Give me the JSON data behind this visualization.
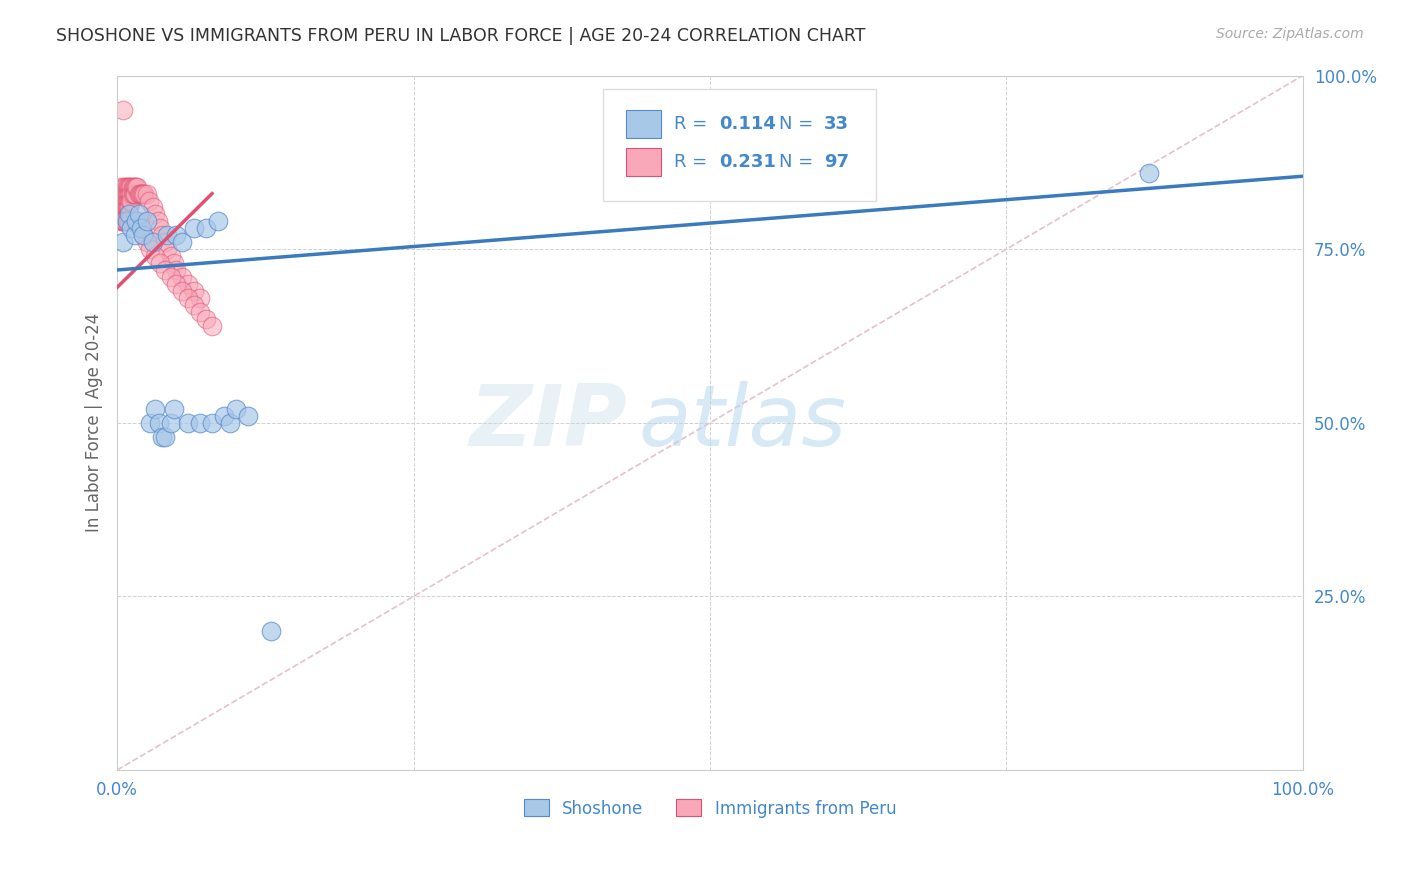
{
  "title": "SHOSHONE VS IMMIGRANTS FROM PERU IN LABOR FORCE | AGE 20-24 CORRELATION CHART",
  "source_text": "Source: ZipAtlas.com",
  "ylabel": "In Labor Force | Age 20-24",
  "xlim": [
    0,
    1
  ],
  "ylim": [
    0,
    1
  ],
  "xticks": [
    0.0,
    0.25,
    0.5,
    0.75,
    1.0
  ],
  "yticks": [
    0.0,
    0.25,
    0.5,
    0.75,
    1.0
  ],
  "xticklabels": [
    "0.0%",
    "",
    "",
    "",
    "100.0%"
  ],
  "yticklabels": [
    "",
    "25.0%",
    "50.0%",
    "75.0%",
    "100.0%"
  ],
  "shoshone_color": "#a8c8e8",
  "peru_color": "#f8a8b8",
  "shoshone_edge_color": "#5588cc",
  "peru_edge_color": "#e05070",
  "trend_blue_color": "#3a7abf",
  "trend_pink_color": "#e05070",
  "diag_line_color": "#e0b0c0",
  "legend_label_blue": "Shoshone",
  "legend_label_pink": "Immigrants from Peru",
  "axis_color": "#4488cc",
  "watermark_zip": "ZIP",
  "watermark_atlas": "atlas",
  "background_color": "#ffffff",
  "shoshone_x": [
    0.005,
    0.008,
    0.01,
    0.012,
    0.015,
    0.016,
    0.018,
    0.02,
    0.022,
    0.025,
    0.028,
    0.03,
    0.032,
    0.035,
    0.038,
    0.04,
    0.042,
    0.045,
    0.048,
    0.05,
    0.055,
    0.06,
    0.065,
    0.07,
    0.075,
    0.08,
    0.085,
    0.09,
    0.095,
    0.1,
    0.11,
    0.13,
    0.87
  ],
  "shoshone_y": [
    0.76,
    0.79,
    0.8,
    0.78,
    0.77,
    0.79,
    0.8,
    0.78,
    0.77,
    0.79,
    0.5,
    0.76,
    0.52,
    0.5,
    0.48,
    0.48,
    0.77,
    0.5,
    0.52,
    0.77,
    0.76,
    0.5,
    0.78,
    0.5,
    0.78,
    0.5,
    0.79,
    0.51,
    0.5,
    0.52,
    0.51,
    0.2,
    0.86
  ],
  "peru_x": [
    0.002,
    0.003,
    0.003,
    0.004,
    0.004,
    0.004,
    0.005,
    0.005,
    0.005,
    0.005,
    0.006,
    0.006,
    0.006,
    0.006,
    0.006,
    0.007,
    0.007,
    0.007,
    0.007,
    0.007,
    0.008,
    0.008,
    0.008,
    0.008,
    0.008,
    0.009,
    0.009,
    0.009,
    0.009,
    0.009,
    0.01,
    0.01,
    0.01,
    0.01,
    0.011,
    0.011,
    0.011,
    0.012,
    0.012,
    0.012,
    0.013,
    0.013,
    0.014,
    0.014,
    0.015,
    0.015,
    0.016,
    0.017,
    0.018,
    0.019,
    0.02,
    0.021,
    0.022,
    0.023,
    0.025,
    0.027,
    0.03,
    0.032,
    0.034,
    0.036,
    0.038,
    0.04,
    0.042,
    0.045,
    0.048,
    0.05,
    0.055,
    0.06,
    0.065,
    0.07,
    0.003,
    0.004,
    0.005,
    0.006,
    0.007,
    0.008,
    0.009,
    0.01,
    0.012,
    0.014,
    0.016,
    0.018,
    0.02,
    0.022,
    0.025,
    0.028,
    0.032,
    0.036,
    0.04,
    0.045,
    0.05,
    0.055,
    0.06,
    0.065,
    0.07,
    0.075,
    0.08
  ],
  "peru_y": [
    0.81,
    0.82,
    0.84,
    0.83,
    0.81,
    0.8,
    0.83,
    0.82,
    0.81,
    0.95,
    0.84,
    0.83,
    0.82,
    0.81,
    0.8,
    0.84,
    0.83,
    0.82,
    0.81,
    0.8,
    0.84,
    0.83,
    0.82,
    0.81,
    0.8,
    0.84,
    0.83,
    0.82,
    0.81,
    0.8,
    0.84,
    0.83,
    0.82,
    0.81,
    0.84,
    0.83,
    0.82,
    0.84,
    0.83,
    0.82,
    0.84,
    0.83,
    0.84,
    0.83,
    0.84,
    0.83,
    0.84,
    0.84,
    0.83,
    0.83,
    0.83,
    0.83,
    0.83,
    0.83,
    0.83,
    0.82,
    0.81,
    0.8,
    0.79,
    0.78,
    0.77,
    0.76,
    0.75,
    0.74,
    0.73,
    0.72,
    0.71,
    0.7,
    0.69,
    0.68,
    0.79,
    0.79,
    0.79,
    0.79,
    0.79,
    0.79,
    0.79,
    0.79,
    0.79,
    0.79,
    0.79,
    0.79,
    0.78,
    0.77,
    0.76,
    0.75,
    0.74,
    0.73,
    0.72,
    0.71,
    0.7,
    0.69,
    0.68,
    0.67,
    0.66,
    0.65,
    0.64
  ],
  "blue_trend_x0": 0.0,
  "blue_trend_y0": 0.72,
  "blue_trend_x1": 1.0,
  "blue_trend_y1": 0.855,
  "pink_trend_x0": 0.0,
  "pink_trend_y0": 0.695,
  "pink_trend_x1": 0.08,
  "pink_trend_y1": 0.83
}
